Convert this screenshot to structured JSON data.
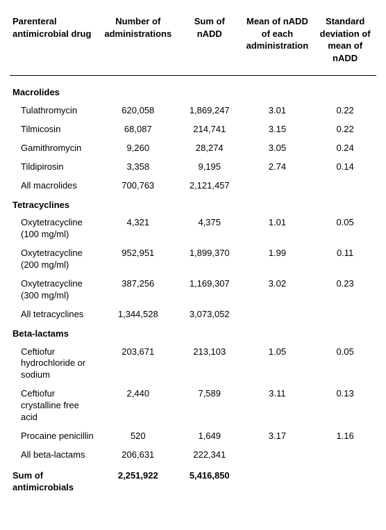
{
  "headers": {
    "drug": "Parenteral antimicrobial drug",
    "numAdmin": "Number of administrations",
    "sumNadd": "Sum of nADD",
    "meanNadd": "Mean of nADD of each administration",
    "sdNadd": "Standard deviation of mean of nADD"
  },
  "sections": [
    {
      "title": "Macrolides",
      "rows": [
        {
          "name": "Tulathromycin",
          "numAdmin": "620,058",
          "sumNadd": "1,869,247",
          "mean": "3.01",
          "sd": "0.22"
        },
        {
          "name": "Tilmicosin",
          "numAdmin": "68,087",
          "sumNadd": "214,741",
          "mean": "3.15",
          "sd": "0.22"
        },
        {
          "name": "Gamithromycin",
          "numAdmin": "9,260",
          "sumNadd": "28,274",
          "mean": "3.05",
          "sd": "0.24"
        },
        {
          "name": "Tildipirosin",
          "numAdmin": "3,358",
          "sumNadd": "9,195",
          "mean": "2.74",
          "sd": "0.14"
        },
        {
          "name": "All macrolides",
          "numAdmin": "700,763",
          "sumNadd": "2,121,457",
          "mean": "",
          "sd": ""
        }
      ]
    },
    {
      "title": "Tetracyclines",
      "rows": [
        {
          "name": "Oxytetracycline (100 mg/ml)",
          "numAdmin": "4,321",
          "sumNadd": "4,375",
          "mean": "1.01",
          "sd": "0.05"
        },
        {
          "name": "Oxytetracycline (200 mg/ml)",
          "numAdmin": "952,951",
          "sumNadd": "1,899,370",
          "mean": "1.99",
          "sd": "0.11"
        },
        {
          "name": "Oxytetracycline (300 mg/ml)",
          "numAdmin": "387,256",
          "sumNadd": "1,169,307",
          "mean": "3.02",
          "sd": "0.23"
        },
        {
          "name": "All tetracyclines",
          "numAdmin": "1,344,528",
          "sumNadd": "3,073,052",
          "mean": "",
          "sd": ""
        }
      ]
    },
    {
      "title": "Beta-lactams",
      "rows": [
        {
          "name": "Ceftiofur hydrochloride or sodium",
          "numAdmin": "203,671",
          "sumNadd": "213,103",
          "mean": "1.05",
          "sd": "0.05"
        },
        {
          "name": "Ceftiofur crystalline free acid",
          "numAdmin": "2,440",
          "sumNadd": "7,589",
          "mean": "3.11",
          "sd": "0.13"
        },
        {
          "name": "Procaine penicillin",
          "numAdmin": "520",
          "sumNadd": "1,649",
          "mean": "3.17",
          "sd": "1.16"
        },
        {
          "name": "All beta-lactams",
          "numAdmin": "206,631",
          "sumNadd": "222,341",
          "mean": "",
          "sd": ""
        }
      ]
    }
  ],
  "total": {
    "label": "Sum of antimicrobials",
    "numAdmin": "2,251,922",
    "sumNadd": "5,416,850"
  }
}
